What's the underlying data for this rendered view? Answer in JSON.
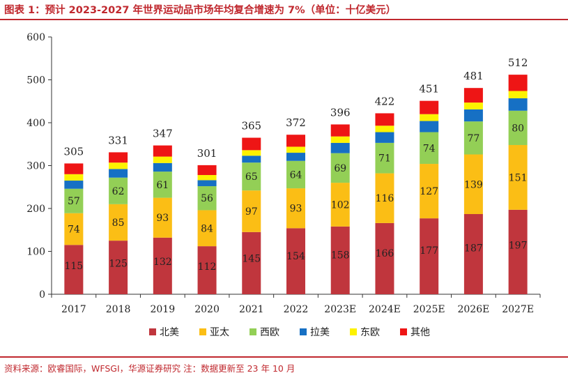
{
  "title": "图表 1：预计 2023-2027 年世界运动品市场年均复合增速为 7%（单位：十亿美元）",
  "source": "资料来源：欧睿国际，WFSGI，华源证券研究 注：数据更新至 23 年 10 月",
  "chart_data": {
    "type": "bar",
    "stacked": true,
    "categories": [
      "2017",
      "2018",
      "2019",
      "2020",
      "2021",
      "2022",
      "2023E",
      "2024E",
      "2025E",
      "2026E",
      "2027E"
    ],
    "ylim": [
      0,
      600
    ],
    "yticks": [
      0,
      100,
      200,
      300,
      400,
      500,
      600
    ],
    "grid": false,
    "legend_position": "bottom",
    "series": [
      {
        "name": "北美",
        "color": "#c0363d",
        "values": [
          115,
          125,
          132,
          112,
          145,
          154,
          158,
          166,
          177,
          187,
          197
        ],
        "labels": [
          "115",
          "125",
          "132",
          "112",
          "145",
          "154",
          "158",
          "166",
          "177",
          "187",
          "197"
        ]
      },
      {
        "name": "亚太",
        "color": "#fbbe15",
        "values": [
          74,
          85,
          93,
          84,
          97,
          93,
          102,
          116,
          127,
          139,
          151
        ],
        "labels": [
          "74",
          "85",
          "93",
          "84",
          "97",
          "93",
          "102",
          "116",
          "127",
          "139",
          "151"
        ]
      },
      {
        "name": "西欧",
        "color": "#93cf56",
        "values": [
          57,
          62,
          61,
          56,
          65,
          64,
          69,
          71,
          74,
          77,
          80
        ],
        "labels": [
          "57",
          "62",
          "61",
          "56",
          "65",
          "64",
          "69",
          "71",
          "74",
          "77",
          "80"
        ]
      },
      {
        "name": "拉美",
        "color": "#1670c4",
        "values": [
          19,
          20,
          20,
          14,
          16,
          19,
          24,
          25,
          26,
          28,
          29
        ],
        "labels": []
      },
      {
        "name": "东欧",
        "color": "#fdf200",
        "values": [
          15,
          15,
          15,
          12,
          13,
          14,
          15,
          15,
          16,
          16,
          17
        ],
        "labels": []
      },
      {
        "name": "其他",
        "color": "#ee1515",
        "values": [
          25,
          24,
          26,
          23,
          29,
          28,
          28,
          29,
          31,
          34,
          38
        ],
        "labels": []
      }
    ],
    "totals": [
      "305",
      "331",
      "347",
      "301",
      "365",
      "372",
      "396",
      "422",
      "451",
      "481",
      "512"
    ]
  }
}
